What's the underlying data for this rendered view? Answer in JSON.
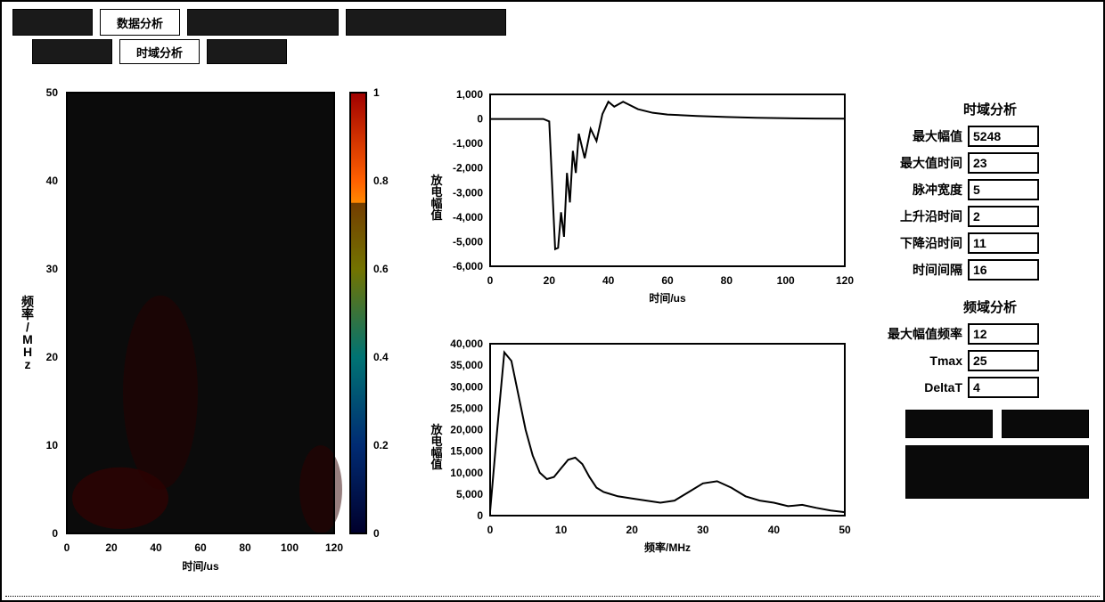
{
  "tabs": {
    "row1": [
      {
        "label": "",
        "active": false
      },
      {
        "label": "数据分析",
        "active": true
      },
      {
        "label": "",
        "active": false
      },
      {
        "label": "",
        "active": false
      }
    ],
    "row2": [
      {
        "label": "",
        "active": false
      },
      {
        "label": "时域分析",
        "active": true
      },
      {
        "label": "",
        "active": false
      }
    ]
  },
  "spectrogram": {
    "ylabel_lines": [
      "频",
      "率",
      "/",
      "M",
      "H",
      "z"
    ],
    "xlabel": "时间/us",
    "xlim": [
      0,
      120
    ],
    "xtick_step": 20,
    "ylim": [
      0,
      50
    ],
    "ytick_step": 10,
    "background_color": "#0b0b0b",
    "colorbar": {
      "ticks": [
        0,
        0.2,
        0.4,
        0.6,
        0.8,
        1
      ],
      "gradient": [
        "#000060",
        "#0060ff",
        "#00ffff",
        "#ffff00",
        "#ff6000",
        "#a00000"
      ]
    }
  },
  "time_chart": {
    "type": "line",
    "ylabel_lines": [
      "放",
      "电",
      "幅",
      "值"
    ],
    "xlabel": "时间/us",
    "xlim": [
      0,
      120
    ],
    "xtick_step": 20,
    "ylim": [
      -6000,
      1000
    ],
    "ytick_step": 1000,
    "line_color": "#000000",
    "series": [
      [
        0,
        0
      ],
      [
        5,
        0
      ],
      [
        10,
        0
      ],
      [
        15,
        0
      ],
      [
        18,
        0
      ],
      [
        20,
        -100
      ],
      [
        22,
        -5300
      ],
      [
        23,
        -5248
      ],
      [
        24,
        -3800
      ],
      [
        25,
        -4800
      ],
      [
        26,
        -2200
      ],
      [
        27,
        -3400
      ],
      [
        28,
        -1300
      ],
      [
        29,
        -2200
      ],
      [
        30,
        -600
      ],
      [
        32,
        -1600
      ],
      [
        34,
        -400
      ],
      [
        36,
        -900
      ],
      [
        38,
        200
      ],
      [
        40,
        700
      ],
      [
        42,
        500
      ],
      [
        45,
        700
      ],
      [
        50,
        400
      ],
      [
        55,
        250
      ],
      [
        60,
        180
      ],
      [
        70,
        120
      ],
      [
        80,
        80
      ],
      [
        90,
        50
      ],
      [
        100,
        30
      ],
      [
        110,
        15
      ],
      [
        120,
        10
      ]
    ]
  },
  "freq_chart": {
    "type": "line",
    "ylabel_lines": [
      "放",
      "电",
      "幅",
      "值"
    ],
    "xlabel": "频率/MHz",
    "xlim": [
      0,
      50
    ],
    "xtick_step": 10,
    "ylim": [
      0,
      40000
    ],
    "ytick_step": 5000,
    "line_color": "#000000",
    "series": [
      [
        0,
        1000
      ],
      [
        1,
        20000
      ],
      [
        2,
        38000
      ],
      [
        3,
        36000
      ],
      [
        4,
        28000
      ],
      [
        5,
        20000
      ],
      [
        6,
        14000
      ],
      [
        7,
        10000
      ],
      [
        8,
        8500
      ],
      [
        9,
        9000
      ],
      [
        10,
        11000
      ],
      [
        11,
        13000
      ],
      [
        12,
        13500
      ],
      [
        13,
        12000
      ],
      [
        14,
        9000
      ],
      [
        15,
        6500
      ],
      [
        16,
        5500
      ],
      [
        17,
        5000
      ],
      [
        18,
        4500
      ],
      [
        20,
        4000
      ],
      [
        22,
        3500
      ],
      [
        24,
        3000
      ],
      [
        26,
        3500
      ],
      [
        28,
        5500
      ],
      [
        30,
        7500
      ],
      [
        32,
        8000
      ],
      [
        34,
        6500
      ],
      [
        36,
        4500
      ],
      [
        38,
        3500
      ],
      [
        40,
        3000
      ],
      [
        42,
        2200
      ],
      [
        44,
        2500
      ],
      [
        46,
        1800
      ],
      [
        48,
        1200
      ],
      [
        50,
        800
      ]
    ]
  },
  "params": {
    "time_title": "时域分析",
    "freq_title": "频域分析",
    "time": [
      {
        "label": "最大幅值",
        "value": "5248"
      },
      {
        "label": "最大值时间",
        "value": "23"
      },
      {
        "label": "脉冲宽度",
        "value": "5"
      },
      {
        "label": "上升沿时间",
        "value": "2"
      },
      {
        "label": "下降沿时间",
        "value": "11"
      },
      {
        "label": "时间间隔",
        "value": "16"
      }
    ],
    "freq": [
      {
        "label": "最大幅值频率",
        "value": "12"
      },
      {
        "label": "Tmax",
        "value": "25"
      },
      {
        "label": "DeltaT",
        "value": "4"
      }
    ]
  }
}
